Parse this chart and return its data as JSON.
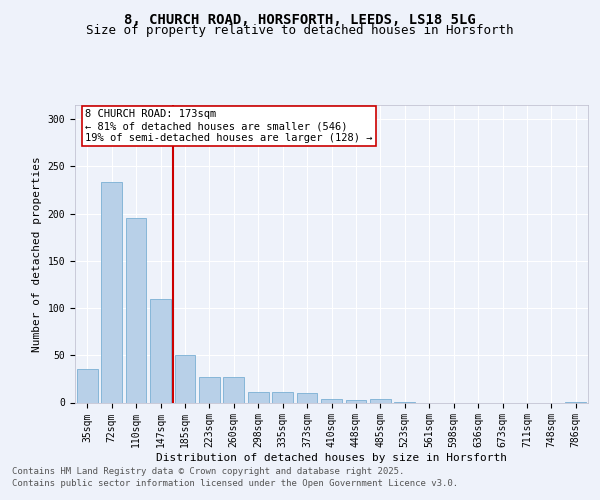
{
  "title_line1": "8, CHURCH ROAD, HORSFORTH, LEEDS, LS18 5LG",
  "title_line2": "Size of property relative to detached houses in Horsforth",
  "xlabel": "Distribution of detached houses by size in Horsforth",
  "ylabel": "Number of detached properties",
  "categories": [
    "35sqm",
    "72sqm",
    "110sqm",
    "147sqm",
    "185sqm",
    "223sqm",
    "260sqm",
    "298sqm",
    "335sqm",
    "373sqm",
    "410sqm",
    "448sqm",
    "485sqm",
    "523sqm",
    "561sqm",
    "598sqm",
    "636sqm",
    "673sqm",
    "711sqm",
    "748sqm",
    "786sqm"
  ],
  "values": [
    35,
    233,
    195,
    110,
    50,
    27,
    27,
    11,
    11,
    10,
    4,
    3,
    4,
    1,
    0,
    0,
    0,
    0,
    0,
    0,
    1
  ],
  "bar_color": "#b8d0e8",
  "bar_edge_color": "#7aafd4",
  "vline_color": "#cc0000",
  "annotation_text": "8 CHURCH ROAD: 173sqm\n← 81% of detached houses are smaller (546)\n19% of semi-detached houses are larger (128) →",
  "annotation_box_color": "#ffffff",
  "annotation_box_edge": "#cc0000",
  "ylim": [
    0,
    315
  ],
  "yticks": [
    0,
    50,
    100,
    150,
    200,
    250,
    300
  ],
  "background_color": "#eef2fa",
  "plot_bg_color": "#eef2fa",
  "grid_color": "#ffffff",
  "footer_line1": "Contains HM Land Registry data © Crown copyright and database right 2025.",
  "footer_line2": "Contains public sector information licensed under the Open Government Licence v3.0.",
  "title_fontsize": 10,
  "subtitle_fontsize": 9,
  "axis_label_fontsize": 8,
  "tick_fontsize": 7,
  "annotation_fontsize": 7.5,
  "footer_fontsize": 6.5
}
